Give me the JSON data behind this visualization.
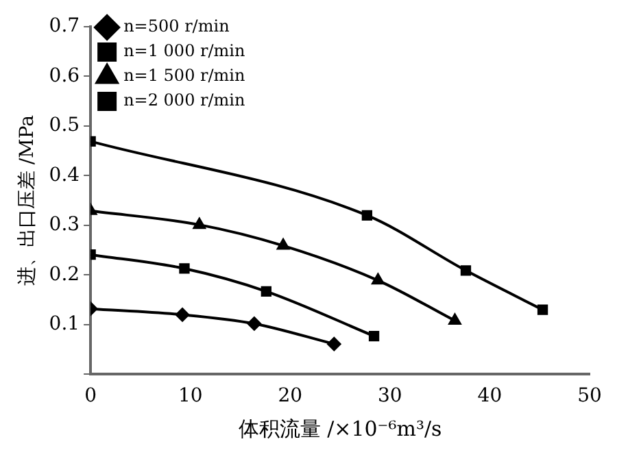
{
  "chart_data": {
    "type": "line",
    "xlabel": "体积流量 /×10⁻⁶m³/s",
    "ylabel": "进、出口压差 /MPa",
    "xlim": [
      0,
      50
    ],
    "xticks": [
      0,
      10,
      20,
      30,
      40,
      50
    ],
    "ylim": [
      0,
      0.7
    ],
    "yticks": [
      {
        "value": 0,
        "label": null
      },
      0.1,
      0.2,
      0.3,
      0.4,
      0.5,
      0.6,
      0.7
    ],
    "grid": false,
    "legend": "top left",
    "line_style": "solid",
    "series": [
      {
        "name": "n=500 r/min",
        "color": "#000000",
        "marker": "diamond",
        "x": [
          0,
          9.2,
          16.4,
          24.4
        ],
        "values": [
          0.132,
          0.12,
          0.102,
          0.061
        ]
      },
      {
        "name": "n=1 000 r/min",
        "color": "#000000",
        "marker": "square",
        "x": [
          0,
          9.4,
          17.6,
          28.4
        ],
        "values": [
          0.241,
          0.213,
          0.167,
          0.077
        ]
      },
      {
        "name": "n=1 500 r/min",
        "color": "#000000",
        "marker": "triangle",
        "x": [
          0,
          10.9,
          19.3,
          28.8,
          36.5
        ],
        "values": [
          0.329,
          0.301,
          0.259,
          0.189,
          0.108
        ]
      },
      {
        "name": "n=2 000 r/min",
        "color": "#000000",
        "marker": "square",
        "x": [
          0,
          27.7,
          37.6,
          45.3
        ],
        "values": [
          0.469,
          0.32,
          0.209,
          0.13
        ]
      }
    ]
  }
}
